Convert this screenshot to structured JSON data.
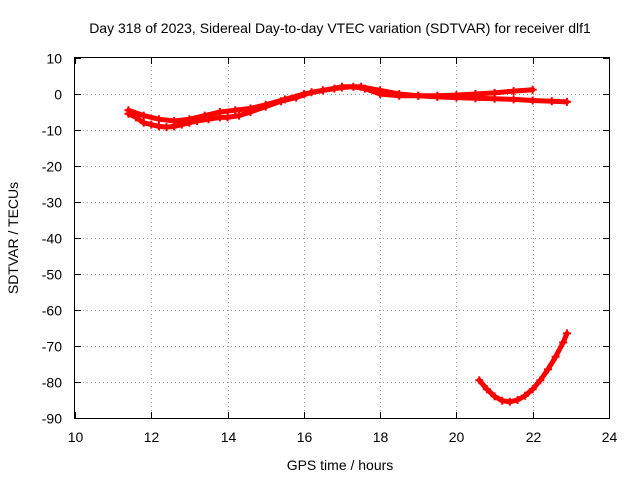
{
  "chart_data": {
    "type": "line",
    "title": "Day 318 of 2023, Sidereal Day-to-day VTEC variation (SDTVAR) for receiver dlf1",
    "xlabel": "GPS time / hours",
    "ylabel": "SDTVAR / TECUs",
    "xlim": [
      10,
      24
    ],
    "ylim": [
      -90,
      10
    ],
    "xticks": [
      10,
      12,
      14,
      16,
      18,
      20,
      22,
      24
    ],
    "yticks": [
      10,
      0,
      -10,
      -20,
      -30,
      -40,
      -50,
      -60,
      -70,
      -80,
      -90
    ],
    "grid": true,
    "series_color": "#ff0000",
    "series": [
      {
        "name": "main-band-lower",
        "x": [
          11.4,
          11.6,
          11.8,
          12.0,
          12.2,
          12.4,
          12.6,
          12.8,
          13.0,
          13.2,
          13.5,
          13.8,
          14.0,
          14.3,
          14.6,
          15.0,
          15.4,
          15.8,
          16.2,
          16.5,
          16.8,
          17.0,
          17.3,
          17.6,
          18.0,
          18.5,
          19.0,
          19.5,
          20.0,
          20.5,
          21.0,
          21.5,
          22.0,
          22.5,
          22.9
        ],
        "values": [
          -5.5,
          -6.5,
          -8,
          -8.5,
          -9,
          -9.2,
          -9,
          -8.5,
          -8,
          -7.5,
          -7,
          -6.5,
          -6.5,
          -6,
          -5,
          -3.5,
          -2,
          -1,
          0.5,
          1,
          1.5,
          1.8,
          2,
          1.5,
          0,
          -0.5,
          -0.5,
          -0.8,
          -1,
          -1.2,
          -1.3,
          -1.5,
          -1.8,
          -2,
          -2.2
        ]
      },
      {
        "name": "main-band-upper",
        "x": [
          11.4,
          11.8,
          12.2,
          12.6,
          13.0,
          13.4,
          13.8,
          14.2,
          14.6,
          15.0,
          15.5,
          16.0,
          16.5,
          17.0,
          17.5,
          18.0,
          18.5,
          19.0,
          19.5,
          20.0,
          20.5,
          21.0,
          21.5,
          22.0
        ],
        "values": [
          -4.5,
          -6,
          -7,
          -7.5,
          -7,
          -6,
          -5,
          -4.5,
          -4,
          -3,
          -1.5,
          0,
          1,
          2,
          2,
          1,
          0,
          -0.5,
          -0.5,
          -0.3,
          0,
          0.3,
          0.8,
          1.2
        ]
      },
      {
        "name": "dip-arc",
        "x": [
          20.6,
          20.8,
          21.0,
          21.2,
          21.4,
          21.6,
          21.8,
          22.0,
          22.2,
          22.4,
          22.6,
          22.8,
          22.9
        ],
        "values": [
          -79.5,
          -82,
          -84,
          -85.2,
          -85.5,
          -85,
          -83.8,
          -82,
          -79.5,
          -76.5,
          -73,
          -69,
          -66.5
        ]
      }
    ]
  }
}
